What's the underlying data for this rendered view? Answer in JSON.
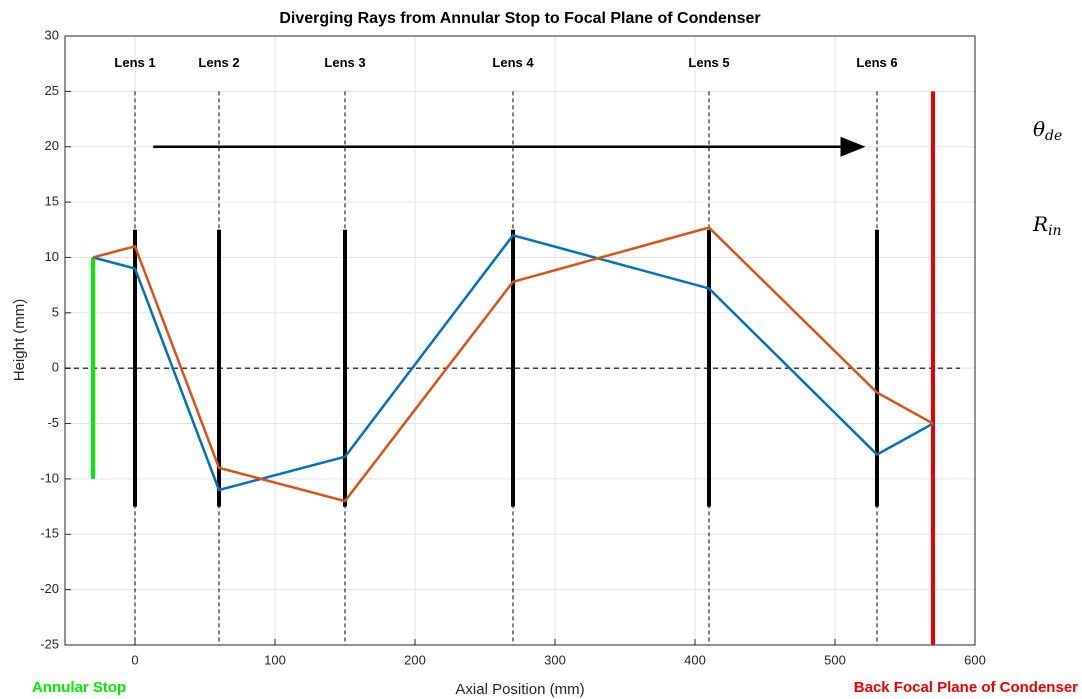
{
  "chart_data": {
    "type": "line",
    "title": "Diverging Rays from Annular Stop to Focal Plane of Condenser",
    "xlabel": "Axial Position (mm)",
    "ylabel": "Height (mm)",
    "xlim": [
      -50,
      600
    ],
    "ylim": [
      -25,
      30
    ],
    "xticks": [
      0,
      100,
      200,
      300,
      400,
      500,
      600
    ],
    "yticks": [
      -25,
      -20,
      -15,
      -10,
      -5,
      0,
      5,
      10,
      15,
      20,
      25,
      30
    ],
    "grid": true,
    "x": [
      -30,
      0,
      60,
      150,
      270,
      410,
      530,
      570
    ],
    "series": [
      {
        "color": "#0072BD",
        "values": [
          10,
          9,
          -11,
          -8,
          12,
          7.2,
          -7.8,
          -5
        ]
      },
      {
        "color": "#D95319",
        "values": [
          10,
          11,
          -9,
          -12,
          7.8,
          12.7,
          -2.2,
          -5
        ]
      }
    ],
    "axis_line_y": 0,
    "lens_ylim": [
      -12.5,
      12.5
    ],
    "lenses": [
      {
        "label": "Lens 1",
        "x": 0
      },
      {
        "label": "Lens 2",
        "x": 60
      },
      {
        "label": "Lens 3",
        "x": 150
      },
      {
        "label": "Lens 4",
        "x": 270
      },
      {
        "label": "Lens 5",
        "x": 410
      },
      {
        "label": "Lens 6",
        "x": 530
      }
    ],
    "stop": {
      "label": "Annular Stop",
      "x": -30,
      "ylim": [
        -10,
        10
      ],
      "color": "#00ee00"
    },
    "focal_plane": {
      "label": "Back Focal Plane of Condenser",
      "x": 570,
      "ylim": [
        -25,
        25
      ],
      "color": "#ee0000"
    },
    "arrow": {
      "x": [
        13,
        520
      ],
      "y": 20
    },
    "equations": [
      {
        "symbol": "θ",
        "subscript": "de"
      },
      {
        "symbol": "R",
        "subscript": "in"
      }
    ]
  }
}
